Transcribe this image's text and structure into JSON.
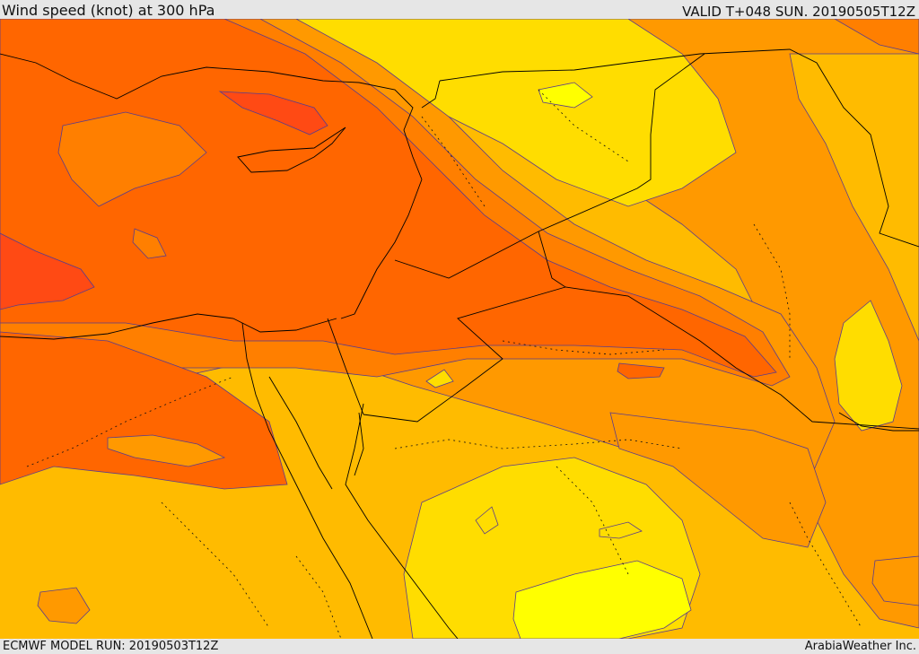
{
  "header": {
    "title": "Wind speed (knot) at 300 hPa",
    "valid": "VALID T+048 SUN. 20190505T12Z"
  },
  "footer": {
    "model_run": "ECMWF MODEL RUN: 20190503T12Z",
    "credit": "ArabiaWeather Inc."
  },
  "map": {
    "variable": "wind speed",
    "level": "300 hPa",
    "units": "knot",
    "palette": {
      "band_1": "#ffff00",
      "band_2": "#ffdd00",
      "band_3": "#ffbb00",
      "band_4": "#ff9900",
      "band_5": "#ff7f00",
      "band_6": "#ff6600",
      "band_7": "#ff4a14",
      "contour": "#5a3c8c",
      "coastline": "#000000"
    }
  }
}
